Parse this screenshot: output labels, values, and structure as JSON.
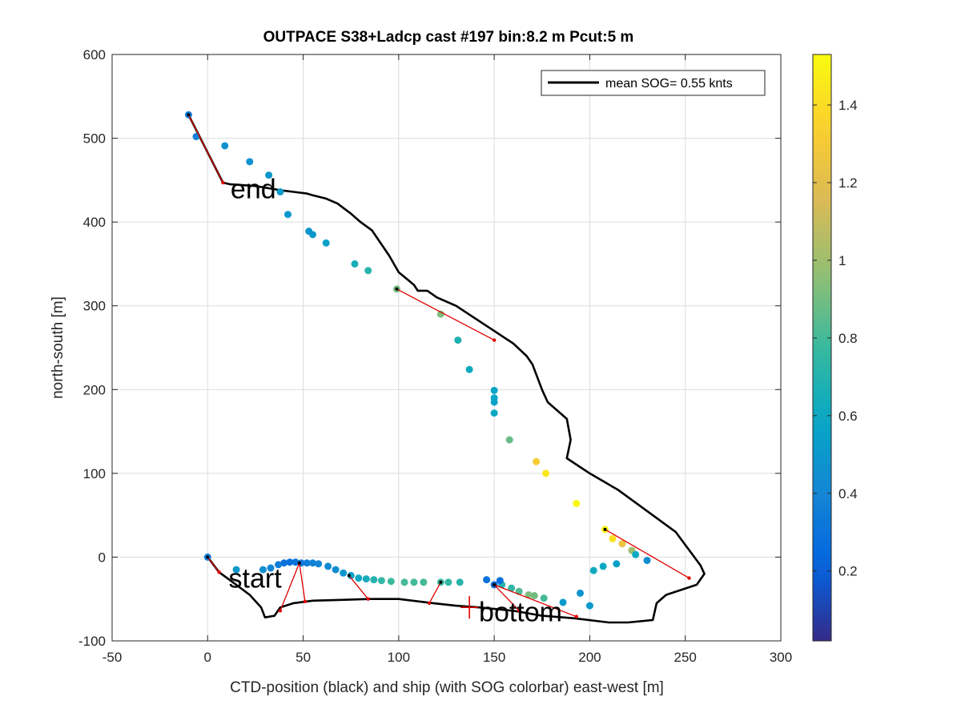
{
  "chart_data": {
    "type": "scatter",
    "title": "OUTPACE S38+Ladcp cast #197 bin:8.2 m  Pcut:5 m",
    "xlabel": "CTD-position (black) and ship (with SOG colorbar) east-west [m]",
    "ylabel": "north-south [m]",
    "xlim": [
      -50,
      300
    ],
    "ylim": [
      -100,
      600
    ],
    "xticks": [
      "-50",
      "0",
      "50",
      "100",
      "150",
      "200",
      "250",
      "300"
    ],
    "yticks": [
      "-100",
      "0",
      "100",
      "200",
      "300",
      "400",
      "500",
      "600"
    ],
    "grid": true,
    "legend": {
      "placement": "top-right",
      "label": "mean SOG=  0.55 knts"
    },
    "colorbar": {
      "range": [
        0.02,
        1.53
      ],
      "ticks": [
        "0.2",
        "0.4",
        "0.6",
        "0.8",
        "1",
        "1.2",
        "1.4"
      ],
      "colormap": "parula"
    },
    "annotations": [
      {
        "text": "start",
        "x": 11,
        "y": -25
      },
      {
        "text": "bottom",
        "x": 142,
        "y": -65
      },
      {
        "text": "end",
        "x": 12,
        "y": 440
      }
    ],
    "ctd_track": [
      [
        -10,
        528
      ],
      [
        8,
        447
      ],
      [
        12,
        445
      ],
      [
        25,
        443
      ],
      [
        38,
        438
      ],
      [
        45,
        436
      ],
      [
        52,
        434
      ],
      [
        55,
        432
      ],
      [
        62,
        428
      ],
      [
        68,
        422
      ],
      [
        75,
        410
      ],
      [
        80,
        400
      ],
      [
        86,
        390
      ],
      [
        95,
        360
      ],
      [
        100,
        340
      ],
      [
        108,
        325
      ],
      [
        110,
        318
      ],
      [
        115,
        318
      ],
      [
        120,
        310
      ],
      [
        130,
        300
      ],
      [
        140,
        285
      ],
      [
        150,
        270
      ],
      [
        160,
        255
      ],
      [
        167,
        240
      ],
      [
        170,
        230
      ],
      [
        175,
        200
      ],
      [
        178,
        185
      ],
      [
        188,
        165
      ],
      [
        190,
        140
      ],
      [
        188,
        118
      ],
      [
        200,
        100
      ],
      [
        215,
        80
      ],
      [
        230,
        55
      ],
      [
        245,
        30
      ],
      [
        258,
        -10
      ],
      [
        260,
        -20
      ],
      [
        256,
        -33
      ],
      [
        240,
        -45
      ],
      [
        235,
        -55
      ],
      [
        233,
        -75
      ],
      [
        220,
        -78
      ],
      [
        210,
        -78
      ],
      [
        192,
        -73
      ],
      [
        175,
        -70
      ],
      [
        160,
        -64
      ],
      [
        142,
        -60
      ],
      [
        130,
        -58
      ],
      [
        118,
        -55
      ],
      [
        100,
        -50
      ],
      [
        85,
        -50
      ],
      [
        70,
        -51
      ],
      [
        55,
        -52
      ],
      [
        45,
        -55
      ],
      [
        38,
        -60
      ],
      [
        35,
        -70
      ],
      [
        30,
        -72
      ],
      [
        28,
        -60
      ],
      [
        22,
        -45
      ],
      [
        12,
        -28
      ],
      [
        6,
        -18
      ],
      [
        0,
        0
      ]
    ],
    "ship_points": [
      {
        "x": -10,
        "y": 528,
        "sog": 0.35
      },
      {
        "x": -6,
        "y": 502,
        "sog": 0.38
      },
      {
        "x": 9,
        "y": 491,
        "sog": 0.47
      },
      {
        "x": 22,
        "y": 472,
        "sog": 0.47
      },
      {
        "x": 32,
        "y": 456,
        "sog": 0.5
      },
      {
        "x": 38,
        "y": 436,
        "sog": 0.52
      },
      {
        "x": 42,
        "y": 409,
        "sog": 0.5
      },
      {
        "x": 53,
        "y": 389,
        "sog": 0.48
      },
      {
        "x": 55,
        "y": 385,
        "sog": 0.5
      },
      {
        "x": 62,
        "y": 375,
        "sog": 0.55
      },
      {
        "x": 77,
        "y": 350,
        "sog": 0.65
      },
      {
        "x": 84,
        "y": 342,
        "sog": 0.72
      },
      {
        "x": 99,
        "y": 320,
        "sog": 0.9
      },
      {
        "x": 122,
        "y": 290,
        "sog": 0.92
      },
      {
        "x": 131,
        "y": 259,
        "sog": 0.68
      },
      {
        "x": 137,
        "y": 224,
        "sog": 0.62
      },
      {
        "x": 150,
        "y": 199,
        "sog": 0.58
      },
      {
        "x": 150,
        "y": 190,
        "sog": 0.58
      },
      {
        "x": 150,
        "y": 185,
        "sog": 0.56
      },
      {
        "x": 150,
        "y": 172,
        "sog": 0.6
      },
      {
        "x": 158,
        "y": 140,
        "sog": 0.88
      },
      {
        "x": 172,
        "y": 114,
        "sog": 1.32
      },
      {
        "x": 177,
        "y": 100,
        "sog": 1.45
      },
      {
        "x": 193,
        "y": 64,
        "sog": 1.52
      },
      {
        "x": 208,
        "y": 33,
        "sog": 1.5
      },
      {
        "x": 212,
        "y": 22,
        "sog": 1.42
      },
      {
        "x": 217,
        "y": 16,
        "sog": 1.25
      },
      {
        "x": 222,
        "y": 8,
        "sog": 1.0
      },
      {
        "x": 224,
        "y": 3,
        "sog": 0.6
      },
      {
        "x": 230,
        "y": -4,
        "sog": 0.45
      },
      {
        "x": 214,
        "y": -8,
        "sog": 0.55
      },
      {
        "x": 207,
        "y": -11,
        "sog": 0.6
      },
      {
        "x": 202,
        "y": -16,
        "sog": 0.62
      },
      {
        "x": 195,
        "y": -43,
        "sog": 0.48
      },
      {
        "x": 200,
        "y": -58,
        "sog": 0.52
      },
      {
        "x": 186,
        "y": -54,
        "sog": 0.52
      },
      {
        "x": 176,
        "y": -49,
        "sog": 0.8
      },
      {
        "x": 171,
        "y": -46,
        "sog": 0.9
      },
      {
        "x": 168,
        "y": -45,
        "sog": 0.92
      },
      {
        "x": 163,
        "y": -41,
        "sog": 0.82
      },
      {
        "x": 159,
        "y": -37,
        "sog": 0.75
      },
      {
        "x": 154,
        "y": -33,
        "sog": 0.7
      },
      {
        "x": 150,
        "y": -33,
        "sog": 0.25
      },
      {
        "x": 153,
        "y": -28,
        "sog": 0.28
      },
      {
        "x": 146,
        "y": -27,
        "sog": 0.3
      },
      {
        "x": 132,
        "y": -30,
        "sog": 0.72
      },
      {
        "x": 126,
        "y": -30,
        "sog": 0.75
      },
      {
        "x": 122,
        "y": -30,
        "sog": 0.78
      },
      {
        "x": 113,
        "y": -30,
        "sog": 0.8
      },
      {
        "x": 108,
        "y": -30,
        "sog": 0.8
      },
      {
        "x": 103,
        "y": -30,
        "sog": 0.8
      },
      {
        "x": 96,
        "y": -29,
        "sog": 0.78
      },
      {
        "x": 91,
        "y": -28,
        "sog": 0.75
      },
      {
        "x": 87,
        "y": -27,
        "sog": 0.7
      },
      {
        "x": 83,
        "y": -26,
        "sog": 0.65
      },
      {
        "x": 79,
        "y": -25,
        "sog": 0.6
      },
      {
        "x": 75,
        "y": -22,
        "sog": 0.55
      },
      {
        "x": 71,
        "y": -19,
        "sog": 0.5
      },
      {
        "x": 67,
        "y": -15,
        "sog": 0.45
      },
      {
        "x": 63,
        "y": -11,
        "sog": 0.42
      },
      {
        "x": 58,
        "y": -8,
        "sog": 0.4
      },
      {
        "x": 55,
        "y": -7,
        "sog": 0.38
      },
      {
        "x": 52,
        "y": -7,
        "sog": 0.36
      },
      {
        "x": 49,
        "y": -7,
        "sog": 0.34
      },
      {
        "x": 46,
        "y": -6,
        "sog": 0.3
      },
      {
        "x": 43,
        "y": -6,
        "sog": 0.28
      },
      {
        "x": 40,
        "y": -7,
        "sog": 0.3
      },
      {
        "x": 37,
        "y": -9,
        "sog": 0.35
      },
      {
        "x": 33,
        "y": -13,
        "sog": 0.4
      },
      {
        "x": 29,
        "y": -15,
        "sog": 0.45
      },
      {
        "x": 15,
        "y": -15,
        "sog": 0.5
      },
      {
        "x": 0,
        "y": 0,
        "sog": 0.35
      }
    ],
    "connections": [
      {
        "ship": [
          -10,
          528
        ],
        "ctd": [
          8,
          447
        ]
      },
      {
        "ship": [
          0,
          0
        ],
        "ctd": [
          6,
          -18
        ]
      },
      {
        "ship": [
          48,
          -7
        ],
        "ctd": [
          38,
          -64
        ]
      },
      {
        "ship": [
          48,
          -7
        ],
        "ctd": [
          51,
          -53
        ]
      },
      {
        "ship": [
          74,
          -22
        ],
        "ctd": [
          84,
          -50
        ]
      },
      {
        "ship": [
          122,
          -30
        ],
        "ctd": [
          116,
          -55
        ]
      },
      {
        "ship": [
          150,
          -33
        ],
        "ctd": [
          163,
          -64
        ]
      },
      {
        "ship": [
          150,
          -33
        ],
        "ctd": [
          193,
          -71
        ]
      },
      {
        "ship": [
          99,
          320
        ],
        "ctd": [
          150,
          259
        ]
      },
      {
        "ship": [
          208,
          33
        ],
        "ctd": [
          252,
          -25
        ]
      }
    ],
    "bottom_marker": {
      "x": 137,
      "y": -60
    }
  }
}
